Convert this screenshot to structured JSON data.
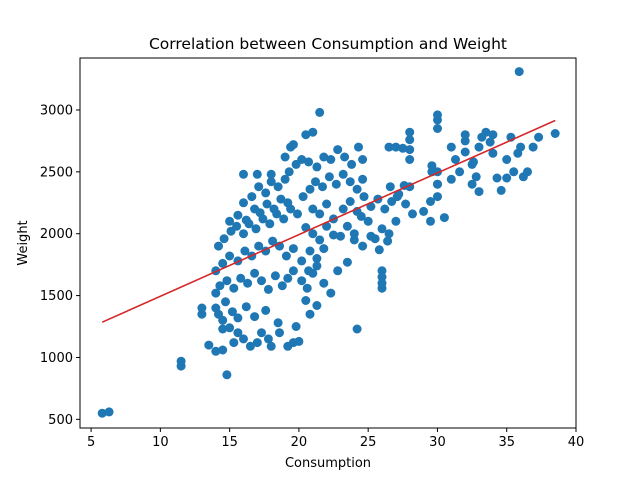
{
  "chart_data": {
    "type": "scatter",
    "title": "Correlation between Consumption and Weight",
    "xlabel": "Consumption",
    "ylabel": "Weight",
    "xlim": [
      4.2,
      40.0
    ],
    "ylim": [
      430,
      3420
    ],
    "xticks": [
      5,
      10,
      15,
      20,
      25,
      30,
      35,
      40
    ],
    "yticks": [
      500,
      1000,
      1500,
      2000,
      2500,
      3000
    ],
    "grid": false,
    "point_color": "#1f77b4",
    "line_color": "#d62728",
    "points": [
      [
        5.8,
        550
      ],
      [
        6.3,
        560
      ],
      [
        11.5,
        930
      ],
      [
        11.5,
        970
      ],
      [
        14.8,
        860
      ],
      [
        13.0,
        1350
      ],
      [
        13.0,
        1400
      ],
      [
        13.5,
        1100
      ],
      [
        14.0,
        1050
      ],
      [
        14.5,
        1060
      ],
      [
        14.5,
        1230
      ],
      [
        15.0,
        1240
      ],
      [
        15.3,
        1120
      ],
      [
        15.6,
        1200
      ],
      [
        16.0,
        1150
      ],
      [
        16.5,
        1090
      ],
      [
        17.0,
        1120
      ],
      [
        17.3,
        1200
      ],
      [
        17.8,
        1150
      ],
      [
        18.0,
        1090
      ],
      [
        18.6,
        1200
      ],
      [
        19.2,
        1090
      ],
      [
        19.6,
        1120
      ],
      [
        20.0,
        1130
      ],
      [
        14.5,
        1300
      ],
      [
        14.0,
        1400
      ],
      [
        14.2,
        1350
      ],
      [
        14.7,
        1450
      ],
      [
        15.2,
        1370
      ],
      [
        15.6,
        1320
      ],
      [
        16.2,
        1410
      ],
      [
        16.8,
        1330
      ],
      [
        17.6,
        1380
      ],
      [
        18.5,
        1280
      ],
      [
        19.8,
        1250
      ],
      [
        14.0,
        1520
      ],
      [
        14.3,
        1580
      ],
      [
        14.8,
        1620
      ],
      [
        15.3,
        1560
      ],
      [
        15.8,
        1640
      ],
      [
        16.3,
        1600
      ],
      [
        16.8,
        1680
      ],
      [
        17.3,
        1620
      ],
      [
        17.8,
        1550
      ],
      [
        18.3,
        1660
      ],
      [
        18.8,
        1580
      ],
      [
        19.2,
        1640
      ],
      [
        19.6,
        1700
      ],
      [
        20.2,
        1620
      ],
      [
        20.6,
        1560
      ],
      [
        21.0,
        1680
      ],
      [
        14.0,
        1700
      ],
      [
        14.5,
        1760
      ],
      [
        15.0,
        1820
      ],
      [
        15.6,
        1780
      ],
      [
        16.1,
        1860
      ],
      [
        16.6,
        1820
      ],
      [
        17.1,
        1900
      ],
      [
        17.6,
        1860
      ],
      [
        18.1,
        1940
      ],
      [
        18.6,
        1900
      ],
      [
        19.1,
        1820
      ],
      [
        19.6,
        1880
      ],
      [
        14.2,
        1900
      ],
      [
        14.6,
        1960
      ],
      [
        15.1,
        2020
      ],
      [
        15.5,
        2060
      ],
      [
        16.0,
        2000
      ],
      [
        16.4,
        2080
      ],
      [
        16.9,
        2040
      ],
      [
        17.4,
        2120
      ],
      [
        17.9,
        2080
      ],
      [
        18.4,
        2160
      ],
      [
        18.9,
        2120
      ],
      [
        19.4,
        2200
      ],
      [
        19.9,
        2160
      ],
      [
        15.0,
        2100
      ],
      [
        15.6,
        2150
      ],
      [
        16.2,
        2110
      ],
      [
        16.8,
        2200
      ],
      [
        17.2,
        2170
      ],
      [
        17.7,
        2240
      ],
      [
        18.2,
        2200
      ],
      [
        18.7,
        2280
      ],
      [
        19.2,
        2250
      ],
      [
        16.0,
        2250
      ],
      [
        16.6,
        2300
      ],
      [
        17.1,
        2380
      ],
      [
        17.6,
        2330
      ],
      [
        18.0,
        2420
      ],
      [
        18.5,
        2380
      ],
      [
        19.0,
        2440
      ],
      [
        16.0,
        2480
      ],
      [
        17.0,
        2480
      ],
      [
        18.0,
        2480
      ],
      [
        19.3,
        2500
      ],
      [
        19.8,
        2560
      ],
      [
        20.2,
        2600
      ],
      [
        20.7,
        2580
      ],
      [
        21.3,
        2540
      ],
      [
        21.8,
        2620
      ],
      [
        22.3,
        2600
      ],
      [
        22.8,
        2680
      ],
      [
        23.3,
        2620
      ],
      [
        23.8,
        2560
      ],
      [
        24.3,
        2700
      ],
      [
        24.6,
        2600
      ],
      [
        19.0,
        2620
      ],
      [
        19.4,
        2700
      ],
      [
        19.6,
        2720
      ],
      [
        20.5,
        2800
      ],
      [
        21.0,
        2820
      ],
      [
        21.5,
        2980
      ],
      [
        20.3,
        2300
      ],
      [
        20.8,
        2360
      ],
      [
        21.2,
        2420
      ],
      [
        21.7,
        2380
      ],
      [
        22.2,
        2460
      ],
      [
        22.7,
        2400
      ],
      [
        23.2,
        2480
      ],
      [
        23.7,
        2420
      ],
      [
        24.2,
        2360
      ],
      [
        24.6,
        2440
      ],
      [
        21.0,
        2200
      ],
      [
        21.5,
        2160
      ],
      [
        22.0,
        2240
      ],
      [
        22.5,
        2120
      ],
      [
        20.5,
        2050
      ],
      [
        21.0,
        2000
      ],
      [
        21.5,
        1950
      ],
      [
        22.0,
        2060
      ],
      [
        22.5,
        1990
      ],
      [
        20.8,
        1860
      ],
      [
        21.3,
        1800
      ],
      [
        21.8,
        1880
      ],
      [
        20.2,
        1780
      ],
      [
        20.7,
        1700
      ],
      [
        21.3,
        1740
      ],
      [
        21.8,
        1600
      ],
      [
        22.3,
        1520
      ],
      [
        22.8,
        1700
      ],
      [
        23.5,
        1770
      ],
      [
        24.2,
        1230
      ],
      [
        20.5,
        1460
      ],
      [
        20.8,
        1350
      ],
      [
        21.3,
        1420
      ],
      [
        23.0,
        1980
      ],
      [
        23.5,
        2060
      ],
      [
        24.0,
        2000
      ],
      [
        24.5,
        2140
      ],
      [
        25.0,
        2100
      ],
      [
        25.5,
        1960
      ],
      [
        26.0,
        2040
      ],
      [
        26.5,
        2000
      ],
      [
        27.0,
        2100
      ],
      [
        24.0,
        1950
      ],
      [
        24.6,
        1900
      ],
      [
        25.2,
        1980
      ],
      [
        25.8,
        1870
      ],
      [
        26.4,
        1940
      ],
      [
        23.2,
        2200
      ],
      [
        23.7,
        2260
      ],
      [
        24.2,
        2180
      ],
      [
        24.7,
        2300
      ],
      [
        25.2,
        2220
      ],
      [
        25.7,
        2280
      ],
      [
        26.2,
        2200
      ],
      [
        26.7,
        2260
      ],
      [
        27.2,
        2320
      ],
      [
        27.7,
        2240
      ],
      [
        28.2,
        2160
      ],
      [
        26.0,
        1700
      ],
      [
        26.0,
        1650
      ],
      [
        26.0,
        1600
      ],
      [
        26.0,
        1560
      ],
      [
        26.6,
        2380
      ],
      [
        27.1,
        2300
      ],
      [
        27.6,
        2390
      ],
      [
        28.0,
        2380
      ],
      [
        28.0,
        2600
      ],
      [
        28.0,
        2680
      ],
      [
        28.0,
        2760
      ],
      [
        28.0,
        2820
      ],
      [
        26.5,
        2700
      ],
      [
        27.0,
        2700
      ],
      [
        27.5,
        2690
      ],
      [
        29.0,
        2180
      ],
      [
        29.5,
        2260
      ],
      [
        29.5,
        2100
      ],
      [
        29.6,
        2500
      ],
      [
        29.6,
        2550
      ],
      [
        30.0,
        2300
      ],
      [
        30.0,
        2400
      ],
      [
        30.0,
        2500
      ],
      [
        30.0,
        2850
      ],
      [
        30.0,
        2920
      ],
      [
        30.0,
        2960
      ],
      [
        30.5,
        2130
      ],
      [
        31.0,
        2440
      ],
      [
        31.3,
        2600
      ],
      [
        31.6,
        2500
      ],
      [
        32.0,
        2750
      ],
      [
        32.0,
        2800
      ],
      [
        32.0,
        2660
      ],
      [
        32.5,
        2560
      ],
      [
        32.5,
        2400
      ],
      [
        32.8,
        2460
      ],
      [
        33.0,
        2700
      ],
      [
        33.2,
        2780
      ],
      [
        33.5,
        2820
      ],
      [
        33.8,
        2740
      ],
      [
        34.0,
        2650
      ],
      [
        34.3,
        2450
      ],
      [
        34.6,
        2350
      ],
      [
        35.0,
        2600
      ],
      [
        35.0,
        2450
      ],
      [
        35.3,
        2780
      ],
      [
        35.5,
        2500
      ],
      [
        35.8,
        2650
      ],
      [
        36.0,
        2700
      ],
      [
        36.2,
        2460
      ],
      [
        36.5,
        2500
      ],
      [
        36.9,
        2700
      ],
      [
        37.3,
        2780
      ],
      [
        38.5,
        2810
      ],
      [
        35.9,
        3310
      ],
      [
        30.0,
        2400
      ],
      [
        31.0,
        2700
      ],
      [
        34.0,
        2800
      ],
      [
        33.0,
        2340
      ],
      [
        32.6,
        2580
      ]
    ],
    "fit_line": {
      "x": [
        5.8,
        38.5
      ],
      "y": [
        1285,
        2915
      ]
    }
  }
}
